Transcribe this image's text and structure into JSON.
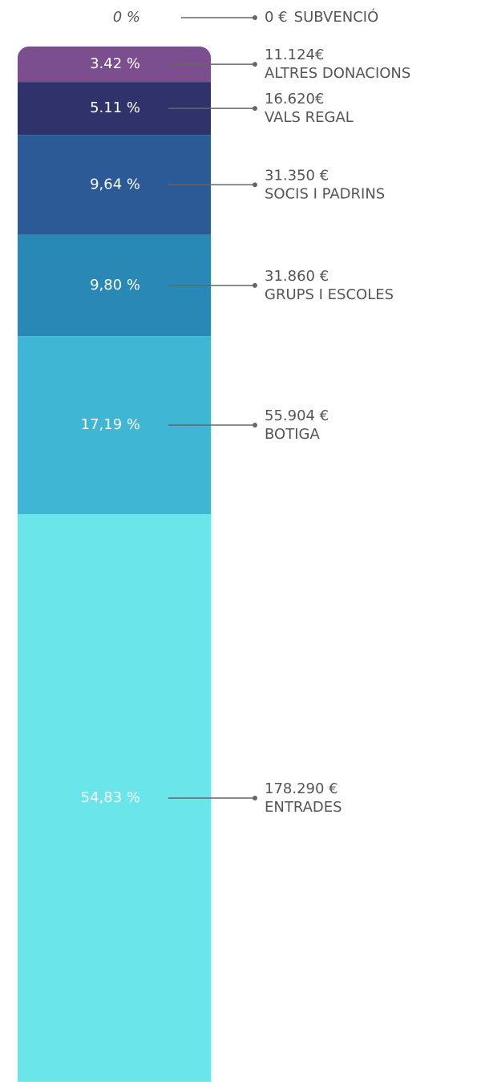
{
  "chart_data": {
    "type": "stacked-bar",
    "categories": [
      "SUBVENCIÓ",
      "ALTRES DONACIONS",
      "VALS REGAL",
      "SOCIS I PADRINS",
      "GRUPS I ESCOLES",
      "BOTIGA",
      "ENTRADES"
    ],
    "values": [
      0,
      3.42,
      5.11,
      9.64,
      9.8,
      17.19,
      54.83
    ],
    "value_labels": [
      "0 %",
      "3.42 %",
      "5.11 %",
      "9,64 %",
      "9,80 %",
      "17,19 %",
      "54,83 %"
    ],
    "amount_labels": [
      "0 €",
      "11.124€",
      "16.620€",
      "31.350 €",
      "31.860 €",
      "55.904 €",
      "178.290 €"
    ],
    "colors": [
      "#cccccc",
      "#7b4f8f",
      "#30336b",
      "#2b5a96",
      "#2a88b7",
      "#40b6d5",
      "#6ae5e9"
    ],
    "ylim": [
      0,
      100
    ]
  }
}
